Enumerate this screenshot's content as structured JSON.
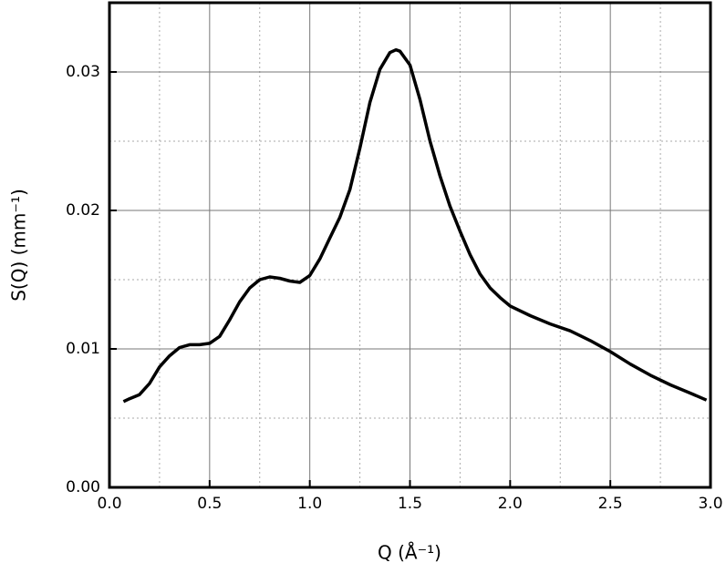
{
  "chart_data": {
    "type": "line",
    "x_label": "Q (Å⁻¹)",
    "y_label": "S(Q) (mm⁻¹)",
    "series": [
      {
        "name": "S(Q)",
        "color": "#000000",
        "x": [
          0.07,
          0.1,
          0.15,
          0.2,
          0.25,
          0.3,
          0.35,
          0.4,
          0.45,
          0.5,
          0.55,
          0.6,
          0.65,
          0.7,
          0.75,
          0.8,
          0.85,
          0.9,
          0.95,
          1.0,
          1.05,
          1.1,
          1.15,
          1.2,
          1.25,
          1.3,
          1.35,
          1.4,
          1.43,
          1.45,
          1.5,
          1.55,
          1.6,
          1.65,
          1.7,
          1.75,
          1.8,
          1.85,
          1.9,
          1.95,
          2.0,
          2.1,
          2.2,
          2.3,
          2.4,
          2.5,
          2.6,
          2.7,
          2.8,
          2.9,
          2.98
        ],
        "values": [
          0.0062,
          0.0064,
          0.0067,
          0.0075,
          0.0087,
          0.0095,
          0.0101,
          0.0103,
          0.0103,
          0.0104,
          0.0109,
          0.0121,
          0.0134,
          0.0144,
          0.015,
          0.0152,
          0.0151,
          0.0149,
          0.0148,
          0.0153,
          0.0165,
          0.018,
          0.0195,
          0.0215,
          0.0245,
          0.0278,
          0.0302,
          0.0314,
          0.0316,
          0.0315,
          0.0305,
          0.028,
          0.025,
          0.0225,
          0.0203,
          0.0185,
          0.0168,
          0.0154,
          0.0144,
          0.0137,
          0.0131,
          0.0124,
          0.0118,
          0.0113,
          0.0106,
          0.0098,
          0.0089,
          0.0081,
          0.0074,
          0.0068,
          0.0063
        ]
      }
    ],
    "xlim": [
      0,
      3
    ],
    "xticks": [
      {
        "value": 0,
        "label": "0.0"
      },
      0.5,
      {
        "value": 1,
        "label": "1.0"
      },
      1.5,
      {
        "value": 2,
        "label": "2.0"
      },
      2.5,
      {
        "value": 3,
        "label": "3.0"
      }
    ],
    "ylim": [
      0,
      0.035
    ],
    "yticks": [
      {
        "value": 0,
        "label": "0.00"
      },
      {
        "value": 0.01,
        "label": "0.01"
      },
      {
        "value": 0.02,
        "label": "0.02"
      },
      {
        "value": 0.03,
        "label": "0.03"
      }
    ],
    "grid": true,
    "minor_grid": true
  }
}
